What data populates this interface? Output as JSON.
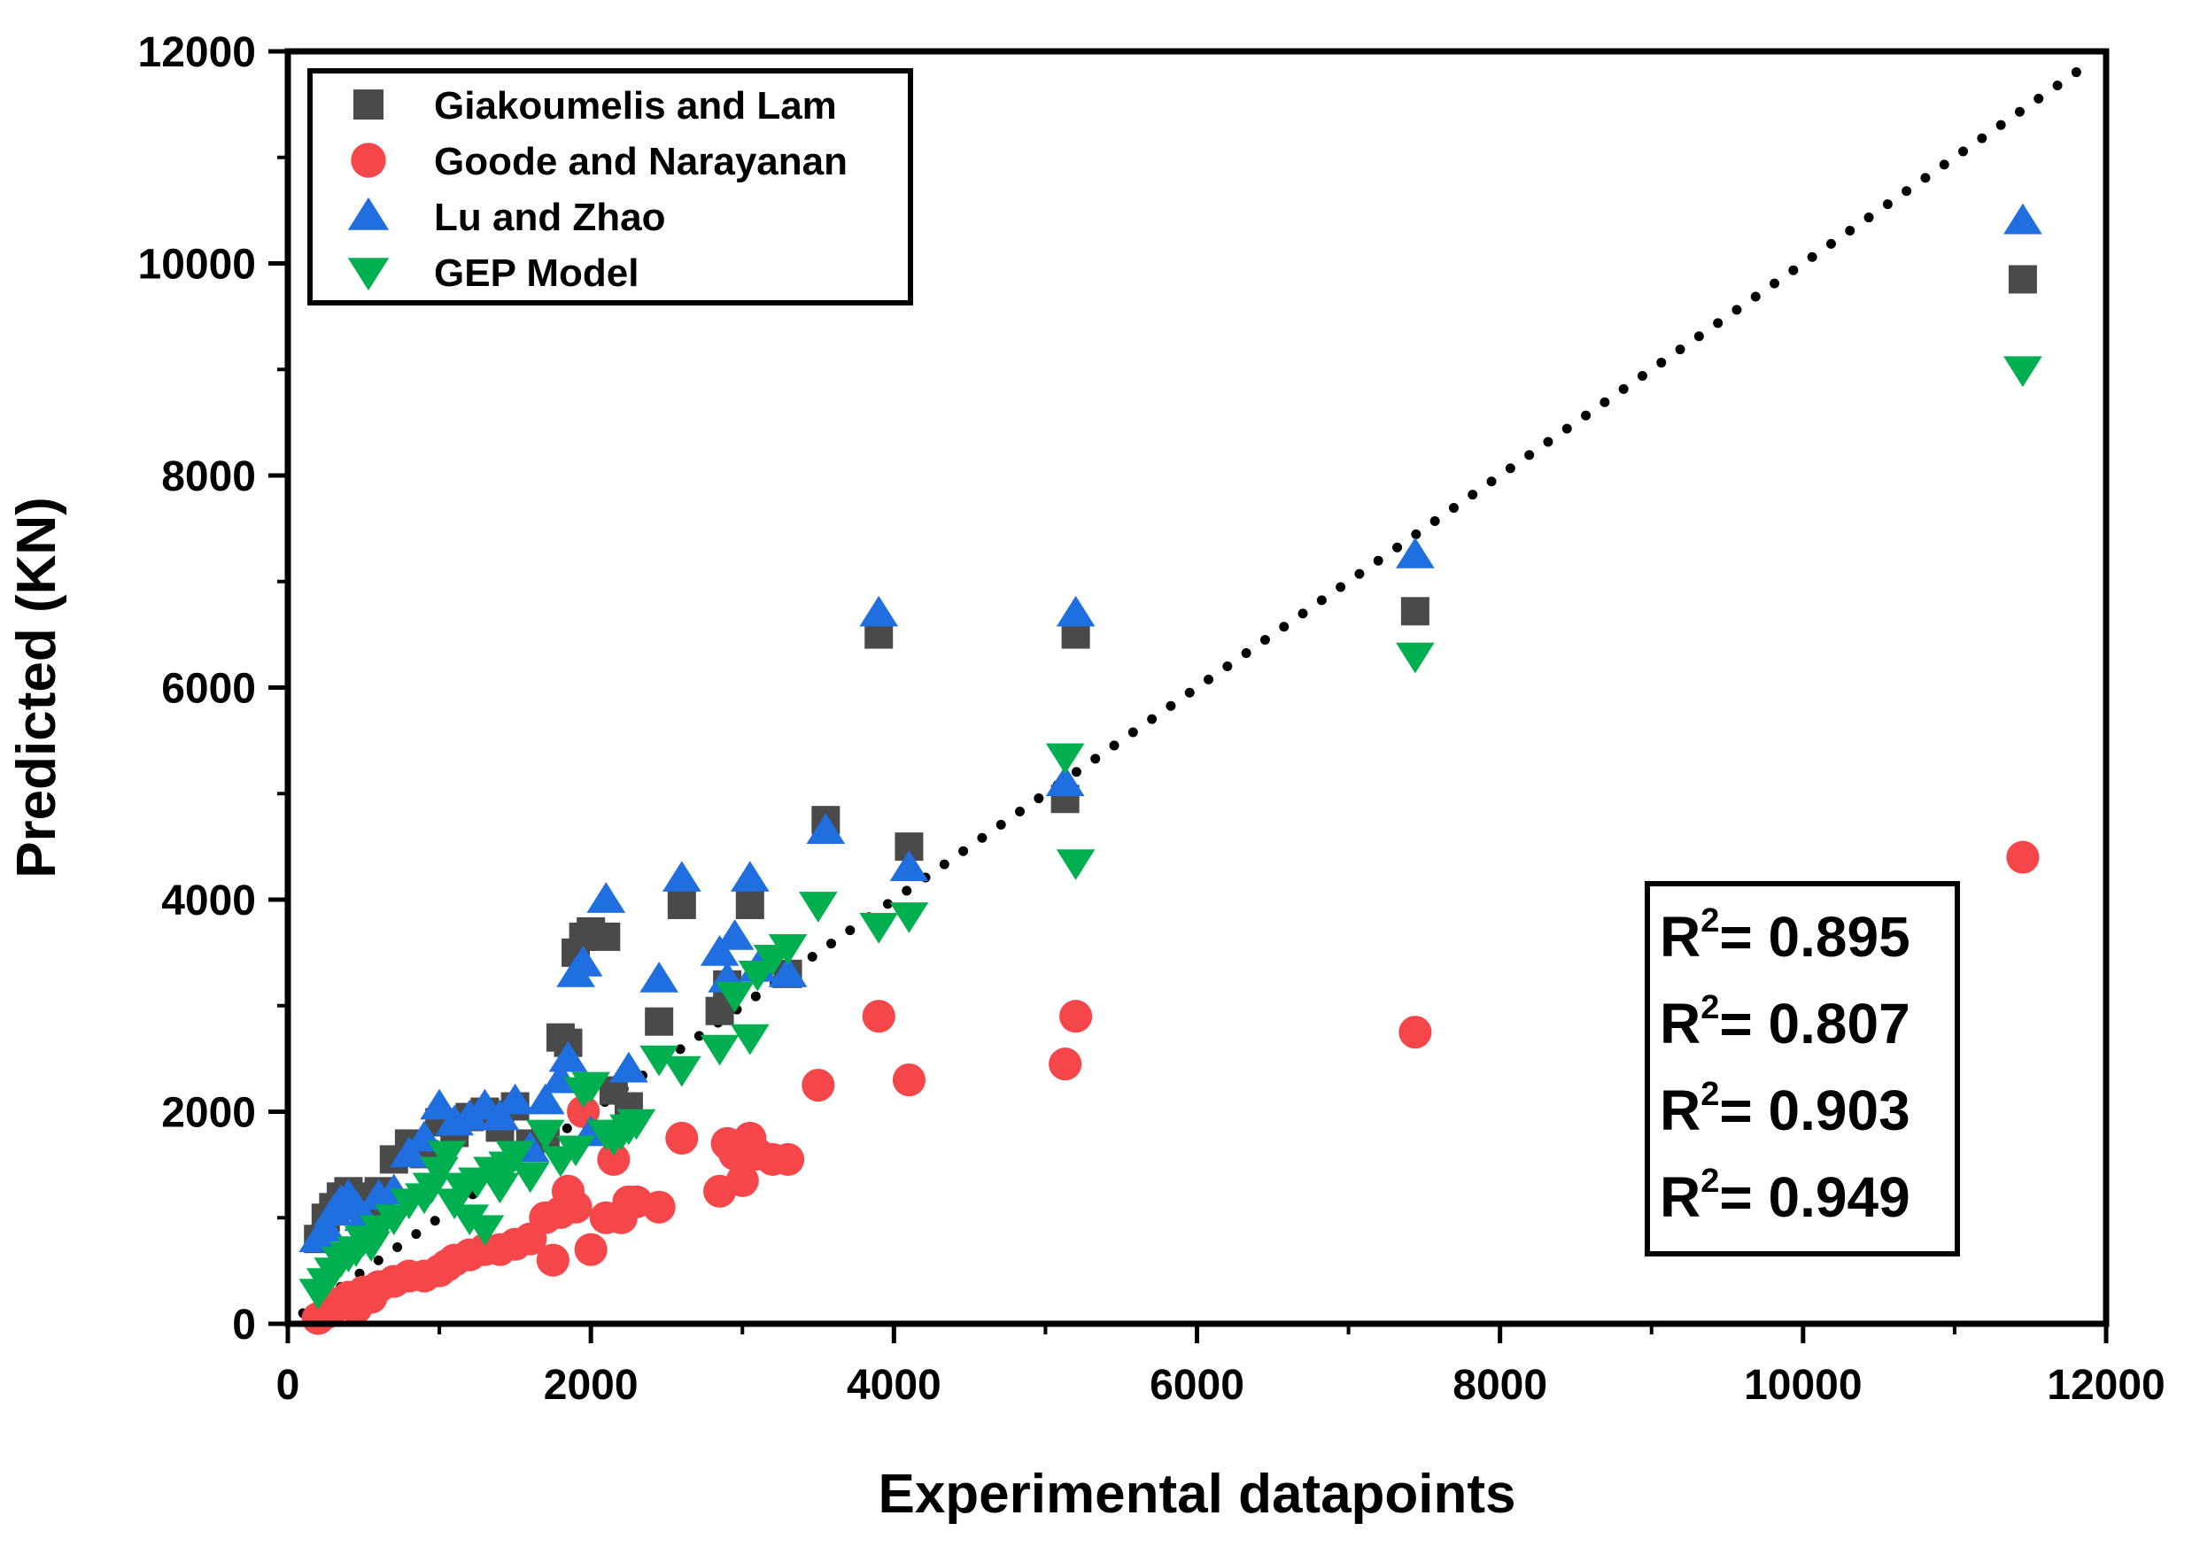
{
  "chart_data": {
    "type": "scatter",
    "xlabel": "Experimental datapoints",
    "ylabel": "Predicted (KN)",
    "xlim": [
      0,
      12000
    ],
    "ylim": [
      0,
      12000
    ],
    "x_ticks": [
      0,
      2000,
      4000,
      6000,
      8000,
      10000,
      12000
    ],
    "y_ticks": [
      0,
      2000,
      4000,
      6000,
      8000,
      10000,
      12000
    ],
    "x_tick_labels": [
      "0",
      "2000",
      "4000",
      "6000",
      "8000",
      "10000",
      "12000"
    ],
    "y_tick_labels": [
      "0",
      "2000",
      "4000",
      "6000",
      "8000",
      "10000",
      "12000"
    ],
    "grid": false,
    "legend_position": "top-left",
    "reference_line": {
      "style": "dotted",
      "color": "#000000",
      "from": [
        100,
        100
      ],
      "to": [
        11900,
        11900
      ]
    },
    "r2_labels": [
      {
        "base": "R",
        "sup": "2",
        "text": "= 0.895"
      },
      {
        "base": "R",
        "sup": "2",
        "text": "= 0.807"
      },
      {
        "base": "R",
        "sup": "2",
        "text": "= 0.903"
      },
      {
        "base": "R",
        "sup": "2",
        "text": "= 0.949"
      }
    ],
    "series": [
      {
        "name": "Giakoumelis and Lam",
        "marker": "square",
        "color": "#4a4a4a",
        "points": [
          [
            200,
            800
          ],
          [
            250,
            1000
          ],
          [
            300,
            1100
          ],
          [
            350,
            1200
          ],
          [
            400,
            1250
          ],
          [
            450,
            1150
          ],
          [
            500,
            1200
          ],
          [
            550,
            1100
          ],
          [
            600,
            1250
          ],
          [
            700,
            1550
          ],
          [
            800,
            1700
          ],
          [
            900,
            1600
          ],
          [
            1000,
            1900
          ],
          [
            1100,
            1800
          ],
          [
            1200,
            1950
          ],
          [
            1300,
            2000
          ],
          [
            1400,
            1850
          ],
          [
            1500,
            2050
          ],
          [
            1600,
            1700
          ],
          [
            1700,
            1750
          ],
          [
            1800,
            2700
          ],
          [
            1850,
            2650
          ],
          [
            1900,
            3500
          ],
          [
            1950,
            3650
          ],
          [
            2000,
            3700
          ],
          [
            2100,
            3650
          ],
          [
            2150,
            2200
          ],
          [
            2250,
            2050
          ],
          [
            2450,
            2850
          ],
          [
            2600,
            3950
          ],
          [
            2850,
            2950
          ],
          [
            2900,
            3200
          ],
          [
            3050,
            3950
          ],
          [
            3300,
            3300
          ],
          [
            3550,
            4750
          ],
          [
            3900,
            6500
          ],
          [
            4100,
            4500
          ],
          [
            5130,
            4950
          ],
          [
            5200,
            6500
          ],
          [
            7440,
            6720
          ],
          [
            11450,
            9850
          ]
        ]
      },
      {
        "name": "Goode and Narayanan",
        "marker": "circle",
        "color": "#f5474a",
        "points": [
          [
            200,
            50
          ],
          [
            250,
            100
          ],
          [
            300,
            150
          ],
          [
            350,
            200
          ],
          [
            400,
            250
          ],
          [
            450,
            150
          ],
          [
            500,
            300
          ],
          [
            550,
            250
          ],
          [
            600,
            350
          ],
          [
            700,
            400
          ],
          [
            800,
            450
          ],
          [
            900,
            450
          ],
          [
            1000,
            500
          ],
          [
            1050,
            550
          ],
          [
            1100,
            600
          ],
          [
            1200,
            650
          ],
          [
            1300,
            700
          ],
          [
            1400,
            700
          ],
          [
            1500,
            750
          ],
          [
            1600,
            800
          ],
          [
            1700,
            1000
          ],
          [
            1750,
            600
          ],
          [
            1800,
            1050
          ],
          [
            1850,
            1250
          ],
          [
            1900,
            1100
          ],
          [
            1950,
            2000
          ],
          [
            2000,
            700
          ],
          [
            2100,
            1000
          ],
          [
            2150,
            1550
          ],
          [
            2200,
            1000
          ],
          [
            2250,
            1150
          ],
          [
            2300,
            1150
          ],
          [
            2450,
            1100
          ],
          [
            2600,
            1750
          ],
          [
            2850,
            1250
          ],
          [
            2900,
            1700
          ],
          [
            2950,
            1600
          ],
          [
            3000,
            1350
          ],
          [
            3050,
            1750
          ],
          [
            3100,
            1600
          ],
          [
            3200,
            1550
          ],
          [
            3300,
            1550
          ],
          [
            3500,
            2250
          ],
          [
            3900,
            2900
          ],
          [
            4100,
            2300
          ],
          [
            5130,
            2450
          ],
          [
            5200,
            2900
          ],
          [
            7440,
            2750
          ],
          [
            11450,
            4400
          ]
        ]
      },
      {
        "name": "Lu and Zhao",
        "marker": "triangle-up",
        "color": "#1f6fe0",
        "points": [
          [
            200,
            800
          ],
          [
            250,
            900
          ],
          [
            300,
            1050
          ],
          [
            350,
            1150
          ],
          [
            400,
            1200
          ],
          [
            450,
            1100
          ],
          [
            500,
            1000
          ],
          [
            600,
            1200
          ],
          [
            700,
            1250
          ],
          [
            800,
            1600
          ],
          [
            900,
            1750
          ],
          [
            1000,
            2050
          ],
          [
            1100,
            1900
          ],
          [
            1200,
            1950
          ],
          [
            1300,
            2050
          ],
          [
            1400,
            1950
          ],
          [
            1500,
            2100
          ],
          [
            1600,
            1650
          ],
          [
            1700,
            2100
          ],
          [
            1800,
            2300
          ],
          [
            1850,
            2500
          ],
          [
            1900,
            3300
          ],
          [
            1950,
            3400
          ],
          [
            2000,
            1800
          ],
          [
            2100,
            4000
          ],
          [
            2250,
            2400
          ],
          [
            2450,
            3250
          ],
          [
            2600,
            4200
          ],
          [
            2850,
            3500
          ],
          [
            2900,
            3250
          ],
          [
            2950,
            3650
          ],
          [
            3050,
            4200
          ],
          [
            3100,
            3350
          ],
          [
            3300,
            3300
          ],
          [
            3550,
            4650
          ],
          [
            3900,
            6700
          ],
          [
            4100,
            4300
          ],
          [
            5130,
            5100
          ],
          [
            5200,
            6700
          ],
          [
            7440,
            7250
          ],
          [
            11450,
            10400
          ]
        ]
      },
      {
        "name": "GEP Model",
        "marker": "triangle-down",
        "color": "#00b050",
        "points": [
          [
            200,
            300
          ],
          [
            250,
            400
          ],
          [
            300,
            500
          ],
          [
            350,
            600
          ],
          [
            400,
            650
          ],
          [
            450,
            700
          ],
          [
            500,
            800
          ],
          [
            550,
            750
          ],
          [
            600,
            900
          ],
          [
            700,
            1000
          ],
          [
            800,
            1150
          ],
          [
            900,
            1200
          ],
          [
            950,
            1300
          ],
          [
            1000,
            1450
          ],
          [
            1050,
            1600
          ],
          [
            1100,
            1150
          ],
          [
            1150,
            1300
          ],
          [
            1200,
            1000
          ],
          [
            1250,
            1350
          ],
          [
            1300,
            900
          ],
          [
            1350,
            1450
          ],
          [
            1400,
            1300
          ],
          [
            1450,
            1500
          ],
          [
            1500,
            1600
          ],
          [
            1600,
            1400
          ],
          [
            1700,
            1800
          ],
          [
            1800,
            1550
          ],
          [
            1900,
            1650
          ],
          [
            1950,
            2200
          ],
          [
            2000,
            2250
          ],
          [
            2100,
            1800
          ],
          [
            2150,
            1750
          ],
          [
            2200,
            1800
          ],
          [
            2250,
            1850
          ],
          [
            2300,
            1900
          ],
          [
            2450,
            2500
          ],
          [
            2600,
            2400
          ],
          [
            2850,
            2600
          ],
          [
            2950,
            3100
          ],
          [
            3050,
            2700
          ],
          [
            3100,
            3300
          ],
          [
            3200,
            3450
          ],
          [
            3300,
            3550
          ],
          [
            3500,
            3950
          ],
          [
            3900,
            3750
          ],
          [
            4100,
            3850
          ],
          [
            5130,
            5350
          ],
          [
            5200,
            4350
          ],
          [
            7440,
            6300
          ],
          [
            11450,
            9000
          ]
        ]
      }
    ]
  }
}
